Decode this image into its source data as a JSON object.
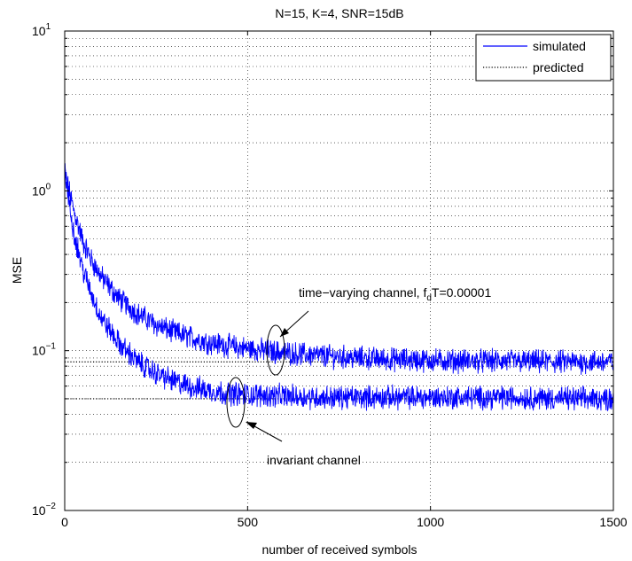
{
  "chart_data": {
    "type": "line",
    "title": "N=15, K=4, SNR=15dB",
    "xlabel": "number of received symbols",
    "ylabel": "MSE",
    "xlim": [
      0,
      1500
    ],
    "ylim": [
      0.01,
      10
    ],
    "yscale": "log",
    "grid": true,
    "legend_position": "top-right",
    "x_ticks": [
      "0",
      "500",
      "1000",
      "1500"
    ],
    "y_ticks": [
      {
        "base": "10",
        "exp": "−2"
      },
      {
        "base": "10",
        "exp": "−1"
      },
      {
        "base": "10",
        "exp": "0"
      },
      {
        "base": "10",
        "exp": "1"
      }
    ],
    "legend": [
      {
        "label": "simulated",
        "style": "solid",
        "color": "#0000ff"
      },
      {
        "label": "predicted",
        "style": "dotted",
        "color": "#000000"
      }
    ],
    "series": [
      {
        "x": [
          0,
          25,
          50,
          75,
          100,
          150,
          200,
          250,
          300,
          350,
          400,
          450,
          500,
          550,
          600,
          700,
          800,
          900,
          1000,
          1100,
          1200,
          1300,
          1400,
          1500
        ],
        "values": [
          1.3,
          0.75,
          0.48,
          0.36,
          0.29,
          0.21,
          0.17,
          0.145,
          0.13,
          0.12,
          0.112,
          0.107,
          0.103,
          0.1,
          0.097,
          0.093,
          0.09,
          0.088,
          0.087,
          0.086,
          0.086,
          0.085,
          0.085,
          0.085
        ],
        "style": "solid",
        "color": "#0000ff"
      },
      {
        "x": [
          0,
          25,
          50,
          75,
          100,
          150,
          200,
          250,
          300,
          350,
          400,
          450,
          500,
          600,
          700,
          800,
          1000,
          1200,
          1400,
          1500
        ],
        "values": [
          1.3,
          0.55,
          0.32,
          0.22,
          0.16,
          0.11,
          0.085,
          0.072,
          0.064,
          0.059,
          0.056,
          0.054,
          0.053,
          0.052,
          0.051,
          0.051,
          0.051,
          0.051,
          0.05,
          0.05
        ],
        "style": "solid",
        "color": "#0000ff"
      },
      {
        "x": [
          0,
          1500
        ],
        "values": [
          0.085,
          0.085
        ],
        "style": "dotted",
        "color": "#000000"
      },
      {
        "x": [
          0,
          1500
        ],
        "values": [
          0.05,
          0.05
        ],
        "style": "dotted",
        "color": "#000000"
      }
    ],
    "annotations": [
      {
        "text_main": "time−varying channel, f",
        "text_sub": "d",
        "text_tail": "T=0.00001",
        "x": 570,
        "y": 0.103
      },
      {
        "text": "invariant channel",
        "x": 475,
        "y": 0.053
      }
    ]
  }
}
